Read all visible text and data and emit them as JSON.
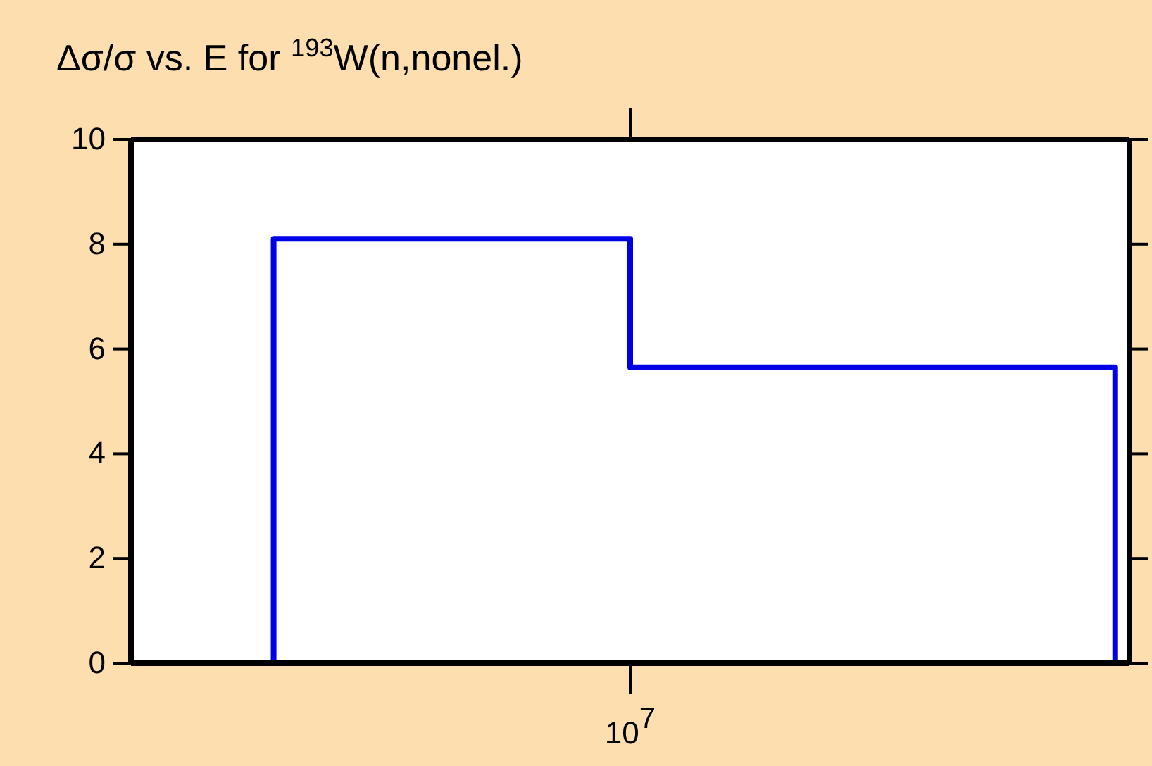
{
  "chart_data": {
    "type": "step",
    "title": "Δσ/σ vs. E for $^{193}$W(n,nonel.)",
    "categories": [
      null,
      null,
      null,
      null,
      null,
      null,
      null,
      null,
      null,
      null,
      null,
      null,
      null,
      null,
      null,
      null,
      null,
      null,
      null,
      null,
      null,
      null,
      null,
      null,
      null,
      null,
      null,
      null,
      null,
      null,
      null,
      null,
      null,
      null,
      null,
      "10$^{7}$",
      null,
      null,
      null,
      null,
      null,
      null,
      null,
      null,
      null,
      null,
      null,
      null,
      null,
      null,
      null,
      null,
      null,
      null,
      null,
      null,
      null,
      null,
      null,
      null,
      null,
      null,
      null,
      null,
      null,
      null,
      null,
      null,
      null,
      null,
      null
    ],
    "series": [
      {
        "color": "#0000e6",
        "values": [
          null,
          null,
          null,
          null,
          null,
          null,
          null,
          null,
          null,
          null,
          0,
          8.1,
          8.1,
          8.1,
          8.1,
          8.1,
          8.1,
          8.1,
          8.1,
          8.1,
          8.1,
          8.1,
          8.1,
          8.1,
          8.1,
          8.1,
          8.1,
          8.1,
          8.1,
          8.1,
          8.1,
          8.1,
          8.1,
          8.1,
          8.1,
          8.1,
          5.65,
          5.65,
          5.65,
          5.65,
          5.65,
          5.65,
          5.65,
          5.65,
          5.65,
          5.65,
          5.65,
          5.65,
          5.65,
          5.65,
          5.65,
          5.65,
          5.65,
          5.65,
          5.65,
          5.65,
          5.65,
          5.65,
          5.65,
          5.65,
          5.65,
          5.65,
          5.65,
          5.65,
          5.65,
          5.65,
          5.65,
          5.65,
          5.65,
          5.65,
          0
        ]
      }
    ],
    "ylim": [
      0,
      10
    ],
    "yticks": [
      0,
      2,
      4,
      6,
      8,
      10
    ],
    "grid": false
  }
}
